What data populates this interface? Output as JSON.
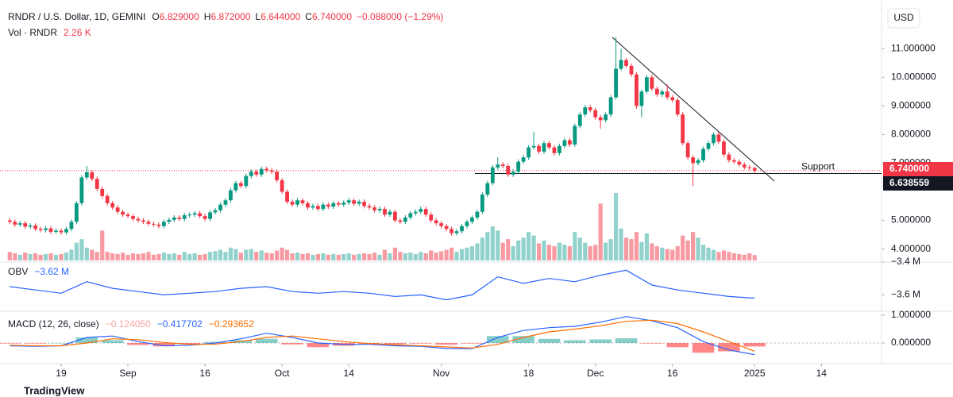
{
  "chart_data": {
    "type": "candlestick",
    "title": "RNDR / U.S. Dollar, 1D, GEMINI",
    "legend": [
      {
        "key": "O",
        "value": "6.829000"
      },
      {
        "key": "H",
        "value": "6.872000"
      },
      {
        "key": "L",
        "value": "6.644000"
      },
      {
        "key": "C",
        "value": "6.740000"
      }
    ],
    "change": "−0.088000 (−1.29%)",
    "currency": "USD",
    "up_color": "#089981",
    "down_color": "#f23645",
    "xlim": [
      -1.9,
      169.7
    ],
    "xticks": [
      {
        "value": 10,
        "label": "19"
      },
      {
        "value": 23,
        "label": "Sep"
      },
      {
        "value": 38,
        "label": "16"
      },
      {
        "value": 53,
        "label": "Oct"
      },
      {
        "value": 66,
        "label": "14"
      },
      {
        "value": 84,
        "label": "Nov"
      },
      {
        "value": 101,
        "label": "18"
      },
      {
        "value": 114,
        "label": "Dec"
      },
      {
        "value": 129,
        "label": "16"
      },
      {
        "value": 145,
        "label": "2025"
      },
      {
        "value": 158,
        "label": "14"
      }
    ],
    "ylim": [
      3.6,
      12.7
    ],
    "yticks": [
      {
        "value": 4,
        "label": "4.000000"
      },
      {
        "value": 5,
        "label": "5.000000"
      },
      {
        "value": 7,
        "label": "7.000000"
      },
      {
        "value": 8,
        "label": "8.000000"
      },
      {
        "value": 9,
        "label": "9.000000"
      },
      {
        "value": 10,
        "label": "10.000000"
      },
      {
        "value": 11,
        "label": "11.000000"
      }
    ],
    "last_price": {
      "value": 6.74,
      "label": "6.740000"
    },
    "support": {
      "value": 6.638559,
      "label": "6.638559",
      "text": "Support"
    },
    "ohlc": [
      [
        5.0,
        5.08,
        4.87,
        4.95
      ],
      [
        4.95,
        5.03,
        4.77,
        4.85
      ],
      [
        4.85,
        4.98,
        4.77,
        4.9
      ],
      [
        4.9,
        4.98,
        4.7,
        4.78
      ],
      [
        4.78,
        4.9,
        4.7,
        4.82
      ],
      [
        4.82,
        4.9,
        4.62,
        4.7
      ],
      [
        4.7,
        4.78,
        4.58,
        4.66
      ],
      [
        4.66,
        4.8,
        4.58,
        4.72
      ],
      [
        4.72,
        4.8,
        4.52,
        4.6
      ],
      [
        4.6,
        4.72,
        4.52,
        4.64
      ],
      [
        4.64,
        4.72,
        4.5,
        4.58
      ],
      [
        4.58,
        4.78,
        4.5,
        4.7
      ],
      [
        4.7,
        5.03,
        4.62,
        4.95
      ],
      [
        4.95,
        5.68,
        4.87,
        5.6
      ],
      [
        5.6,
        6.58,
        5.52,
        6.5
      ],
      [
        6.5,
        6.9,
        6.42,
        6.68
      ],
      [
        6.68,
        6.76,
        6.37,
        6.45
      ],
      [
        6.45,
        6.53,
        6.02,
        6.1
      ],
      [
        6.1,
        6.18,
        5.77,
        5.85
      ],
      [
        5.85,
        5.93,
        5.52,
        5.6
      ],
      [
        5.6,
        5.68,
        5.37,
        5.45
      ],
      [
        5.45,
        5.53,
        5.22,
        5.3
      ],
      [
        5.3,
        5.38,
        5.12,
        5.2
      ],
      [
        5.2,
        5.28,
        5.07,
        5.15
      ],
      [
        5.15,
        5.23,
        4.97,
        5.05
      ],
      [
        5.05,
        5.13,
        4.92,
        5.0
      ],
      [
        5.0,
        5.08,
        4.87,
        4.95
      ],
      [
        4.95,
        5.03,
        4.8,
        4.88
      ],
      [
        4.88,
        4.96,
        4.77,
        4.85
      ],
      [
        4.85,
        4.93,
        4.72,
        4.8
      ],
      [
        4.8,
        5.03,
        4.72,
        4.95
      ],
      [
        4.95,
        5.1,
        4.87,
        5.02
      ],
      [
        5.02,
        5.18,
        4.94,
        5.1
      ],
      [
        5.1,
        5.18,
        4.97,
        5.05
      ],
      [
        5.05,
        5.26,
        4.97,
        5.18
      ],
      [
        5.18,
        5.28,
        5.1,
        5.2
      ],
      [
        5.2,
        5.33,
        5.12,
        5.25
      ],
      [
        5.25,
        5.33,
        5.07,
        5.15
      ],
      [
        5.15,
        5.23,
        4.97,
        5.05
      ],
      [
        5.05,
        5.36,
        4.97,
        5.28
      ],
      [
        5.28,
        5.43,
        5.2,
        5.35
      ],
      [
        5.35,
        5.63,
        5.27,
        5.55
      ],
      [
        5.55,
        5.78,
        5.47,
        5.7
      ],
      [
        5.7,
        6.13,
        5.62,
        6.05
      ],
      [
        6.05,
        6.38,
        5.97,
        6.3
      ],
      [
        6.3,
        6.38,
        6.12,
        6.2
      ],
      [
        6.2,
        6.63,
        6.12,
        6.55
      ],
      [
        6.55,
        6.78,
        6.47,
        6.7
      ],
      [
        6.7,
        6.78,
        6.52,
        6.6
      ],
      [
        6.6,
        6.88,
        6.52,
        6.8
      ],
      [
        6.8,
        6.88,
        6.67,
        6.75
      ],
      [
        6.75,
        6.83,
        6.62,
        6.7
      ],
      [
        6.7,
        6.78,
        6.32,
        6.4
      ],
      [
        6.4,
        6.48,
        5.92,
        6.0
      ],
      [
        6.0,
        6.08,
        5.57,
        5.65
      ],
      [
        5.65,
        5.73,
        5.47,
        5.55
      ],
      [
        5.55,
        5.78,
        5.47,
        5.7
      ],
      [
        5.7,
        5.78,
        5.52,
        5.6
      ],
      [
        5.6,
        5.68,
        5.37,
        5.45
      ],
      [
        5.45,
        5.58,
        5.37,
        5.5
      ],
      [
        5.5,
        5.58,
        5.32,
        5.4
      ],
      [
        5.4,
        5.63,
        5.32,
        5.55
      ],
      [
        5.55,
        5.63,
        5.4,
        5.48
      ],
      [
        5.48,
        5.68,
        5.4,
        5.6
      ],
      [
        5.6,
        5.68,
        5.47,
        5.55
      ],
      [
        5.55,
        5.7,
        5.47,
        5.62
      ],
      [
        5.62,
        5.78,
        5.54,
        5.7
      ],
      [
        5.7,
        5.78,
        5.5,
        5.58
      ],
      [
        5.58,
        5.73,
        5.5,
        5.65
      ],
      [
        5.65,
        5.73,
        5.42,
        5.5
      ],
      [
        5.5,
        5.58,
        5.37,
        5.45
      ],
      [
        5.45,
        5.53,
        5.27,
        5.35
      ],
      [
        5.35,
        5.48,
        5.27,
        5.4
      ],
      [
        5.4,
        5.48,
        5.12,
        5.2
      ],
      [
        5.2,
        5.38,
        5.12,
        5.3
      ],
      [
        5.3,
        5.38,
        4.92,
        5.0
      ],
      [
        5.0,
        5.08,
        4.87,
        4.95
      ],
      [
        4.95,
        5.18,
        4.87,
        5.1
      ],
      [
        5.1,
        5.33,
        5.02,
        5.25
      ],
      [
        5.25,
        5.38,
        5.17,
        5.3
      ],
      [
        5.3,
        5.48,
        5.22,
        5.4
      ],
      [
        5.4,
        5.48,
        5.12,
        5.2
      ],
      [
        5.2,
        5.28,
        4.92,
        5.0
      ],
      [
        5.0,
        5.08,
        4.82,
        4.9
      ],
      [
        4.9,
        4.98,
        4.72,
        4.8
      ],
      [
        4.8,
        4.88,
        4.62,
        4.7
      ],
      [
        4.7,
        4.78,
        4.47,
        4.55
      ],
      [
        4.55,
        4.7,
        4.47,
        4.62
      ],
      [
        4.62,
        4.88,
        4.54,
        4.8
      ],
      [
        4.8,
        5.03,
        4.72,
        4.95
      ],
      [
        4.95,
        5.18,
        4.87,
        5.1
      ],
      [
        5.1,
        5.38,
        5.02,
        5.3
      ],
      [
        5.3,
        5.98,
        5.22,
        5.9
      ],
      [
        5.9,
        6.38,
        5.82,
        6.3
      ],
      [
        6.3,
        6.93,
        6.22,
        6.85
      ],
      [
        6.85,
        7.2,
        6.77,
        6.95
      ],
      [
        6.95,
        7.03,
        6.82,
        6.9
      ],
      [
        6.9,
        6.98,
        6.52,
        6.6
      ],
      [
        6.6,
        6.78,
        6.52,
        6.7
      ],
      [
        6.7,
        7.13,
        6.62,
        7.05
      ],
      [
        7.05,
        7.28,
        6.97,
        7.2
      ],
      [
        7.2,
        7.63,
        7.12,
        7.55
      ],
      [
        7.55,
        8.1,
        7.47,
        7.6
      ],
      [
        7.6,
        7.68,
        7.32,
        7.4
      ],
      [
        7.4,
        7.78,
        7.32,
        7.7
      ],
      [
        7.7,
        7.78,
        7.47,
        7.55
      ],
      [
        7.55,
        7.63,
        7.27,
        7.35
      ],
      [
        7.35,
        7.68,
        7.27,
        7.6
      ],
      [
        7.6,
        7.88,
        7.52,
        7.8
      ],
      [
        7.8,
        7.88,
        7.57,
        7.65
      ],
      [
        7.65,
        8.38,
        7.57,
        8.3
      ],
      [
        8.3,
        8.78,
        8.22,
        8.7
      ],
      [
        8.7,
        9.03,
        8.62,
        8.95
      ],
      [
        8.95,
        9.03,
        8.77,
        8.85
      ],
      [
        8.85,
        8.93,
        8.52,
        8.6
      ],
      [
        8.6,
        8.68,
        8.2,
        8.5
      ],
      [
        8.5,
        8.78,
        8.42,
        8.7
      ],
      [
        8.7,
        9.38,
        8.62,
        9.3
      ],
      [
        9.3,
        11.4,
        9.22,
        10.3
      ],
      [
        10.3,
        11.0,
        10.22,
        10.6
      ],
      [
        10.6,
        10.68,
        10.32,
        10.4
      ],
      [
        10.4,
        10.48,
        10.02,
        10.1
      ],
      [
        10.1,
        10.18,
        8.9,
        9.0
      ],
      [
        9.0,
        9.58,
        8.6,
        9.5
      ],
      [
        9.5,
        10.08,
        9.42,
        10.0
      ],
      [
        10.0,
        10.08,
        9.52,
        9.6
      ],
      [
        9.6,
        9.68,
        9.32,
        9.4
      ],
      [
        9.4,
        9.58,
        9.32,
        9.5
      ],
      [
        9.5,
        9.75,
        9.22,
        9.3
      ],
      [
        9.3,
        9.38,
        9.12,
        9.2
      ],
      [
        9.2,
        9.28,
        8.62,
        8.7
      ],
      [
        8.7,
        8.78,
        7.62,
        7.7
      ],
      [
        7.7,
        7.78,
        7.12,
        7.2
      ],
      [
        7.2,
        7.28,
        6.2,
        7.0
      ],
      [
        7.0,
        7.18,
        6.92,
        7.1
      ],
      [
        7.1,
        7.58,
        7.02,
        7.5
      ],
      [
        7.5,
        7.78,
        7.42,
        7.7
      ],
      [
        7.7,
        8.08,
        7.62,
        8.0
      ],
      [
        8.0,
        8.08,
        7.67,
        7.75
      ],
      [
        7.75,
        7.83,
        7.22,
        7.3
      ],
      [
        7.3,
        7.38,
        7.02,
        7.1
      ],
      [
        7.1,
        7.18,
        6.97,
        7.05
      ],
      [
        7.05,
        7.13,
        6.87,
        6.95
      ],
      [
        6.95,
        7.03,
        6.77,
        6.85
      ],
      [
        6.85,
        6.93,
        6.75,
        6.83
      ],
      [
        6.829,
        6.872,
        6.644,
        6.74
      ]
    ],
    "volume": {
      "title": "Vol · RNDR",
      "last": "2.26 K",
      "values": [
        3.6,
        3.0,
        2.4,
        3.3,
        2.7,
        3.0,
        2.4,
        2.7,
        3.0,
        2.4,
        2.7,
        3.3,
        4.5,
        7.5,
        9.0,
        5.4,
        4.5,
        3.6,
        12.6,
        3.6,
        3.0,
        2.7,
        3.3,
        2.4,
        3.0,
        2.7,
        3.0,
        3.6,
        2.4,
        2.7,
        3.3,
        2.7,
        3.0,
        2.4,
        3.6,
        2.7,
        3.0,
        2.4,
        2.7,
        3.6,
        3.9,
        4.5,
        3.6,
        5.4,
        4.8,
        3.3,
        4.5,
        4.8,
        3.6,
        4.2,
        3.3,
        3.0,
        4.2,
        5.4,
        4.5,
        3.0,
        3.3,
        2.7,
        3.0,
        2.4,
        2.7,
        3.0,
        2.4,
        2.7,
        2.4,
        2.7,
        3.0,
        2.4,
        2.7,
        3.0,
        2.7,
        3.3,
        2.4,
        4.5,
        3.0,
        5.4,
        3.6,
        3.0,
        3.3,
        2.7,
        3.6,
        3.0,
        4.2,
        3.3,
        3.9,
        4.5,
        5.4,
        3.6,
        4.8,
        5.4,
        6.0,
        7.2,
        9.6,
        12.0,
        14.4,
        12.6,
        7.5,
        9.0,
        6.0,
        8.4,
        9.6,
        12.0,
        10.5,
        7.2,
        8.4,
        6.6,
        6.0,
        7.5,
        6.6,
        6.0,
        12.0,
        9.6,
        7.5,
        6.0,
        6.6,
        24.0,
        7.5,
        9.0,
        28.5,
        13.5,
        9.6,
        9.0,
        12.0,
        7.8,
        11.4,
        7.2,
        6.0,
        5.4,
        4.8,
        4.5,
        6.0,
        10.5,
        8.4,
        12.0,
        9.6,
        6.6,
        5.4,
        4.5,
        3.6,
        4.2,
        3.6,
        3.0,
        2.7,
        2.4,
        3.0,
        2.26
      ]
    },
    "obv": {
      "title": "OBV",
      "last": "−3.62 M",
      "color": "#2962ff",
      "ylim": [
        -3.69,
        -3.4
      ],
      "yticks": [
        {
          "value": -3.4,
          "label": "−3.4 M"
        },
        {
          "value": -3.6,
          "label": "−3.6 M"
        }
      ],
      "x": [
        0,
        5,
        10,
        15,
        20,
        25,
        30,
        35,
        40,
        45,
        50,
        55,
        60,
        65,
        70,
        75,
        80,
        85,
        90,
        95,
        100,
        105,
        110,
        115,
        120,
        125,
        130,
        135,
        140,
        145
      ],
      "values": [
        -3.55,
        -3.57,
        -3.59,
        -3.52,
        -3.56,
        -3.58,
        -3.6,
        -3.59,
        -3.58,
        -3.56,
        -3.55,
        -3.58,
        -3.59,
        -3.58,
        -3.59,
        -3.61,
        -3.6,
        -3.63,
        -3.6,
        -3.49,
        -3.53,
        -3.5,
        -3.52,
        -3.48,
        -3.45,
        -3.54,
        -3.57,
        -3.59,
        -3.61,
        -3.62
      ]
    },
    "macd": {
      "title": "MACD (12, 26, close)",
      "last": [
        {
          "value": "−0.124050",
          "color": "#f7a5a3"
        },
        {
          "value": "−0.417702",
          "color": "#2962ff"
        },
        {
          "value": "−0.293652",
          "color": "#ff6d00"
        }
      ],
      "ylim": [
        -0.657,
        1.114
      ],
      "yticks": [
        {
          "value": 1,
          "label": "1.000000"
        },
        {
          "value": 0,
          "label": "0.000000"
        }
      ],
      "x": [
        0,
        5,
        10,
        15,
        20,
        25,
        30,
        35,
        40,
        45,
        50,
        55,
        60,
        65,
        70,
        75,
        80,
        85,
        90,
        95,
        100,
        105,
        110,
        115,
        120,
        125,
        130,
        135,
        140,
        145
      ],
      "macd": [
        -0.1,
        -0.12,
        -0.1,
        0.2,
        0.25,
        0.05,
        -0.1,
        -0.08,
        0.0,
        0.15,
        0.35,
        0.2,
        0.0,
        -0.05,
        -0.05,
        -0.1,
        -0.12,
        -0.2,
        -0.2,
        0.2,
        0.45,
        0.55,
        0.6,
        0.75,
        0.95,
        0.8,
        0.55,
        0.05,
        -0.25,
        -0.417702
      ],
      "signal": [
        -0.08,
        -0.1,
        -0.1,
        0.0,
        0.15,
        0.12,
        0.02,
        -0.05,
        -0.04,
        0.05,
        0.2,
        0.25,
        0.15,
        0.05,
        -0.02,
        -0.06,
        -0.1,
        -0.14,
        -0.18,
        -0.05,
        0.2,
        0.4,
        0.5,
        0.62,
        0.78,
        0.82,
        0.7,
        0.4,
        0.05,
        -0.293652
      ],
      "histogram": [
        -0.02,
        -0.02,
        0.0,
        0.2,
        0.1,
        -0.07,
        -0.12,
        -0.03,
        0.04,
        0.1,
        0.15,
        -0.05,
        -0.15,
        -0.1,
        -0.03,
        -0.04,
        -0.02,
        -0.06,
        -0.02,
        0.25,
        0.25,
        0.15,
        0.1,
        0.13,
        0.17,
        -0.02,
        -0.15,
        -0.35,
        -0.3,
        -0.12405
      ],
      "macd_color": "#2962ff",
      "signal_color": "#ff6d00"
    }
  },
  "footer": "TradingView"
}
